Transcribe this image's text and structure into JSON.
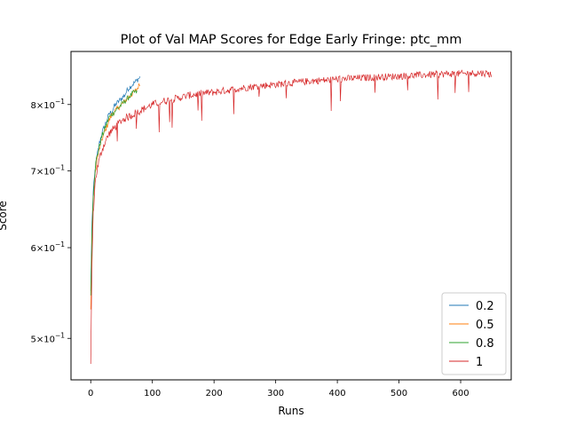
{
  "chart_data": {
    "type": "line",
    "title": "Plot of Val MAP Scores for Edge Early Fringe: ptc_mm",
    "xlabel": "Runs",
    "ylabel": "Score",
    "yscale": "log",
    "xlim": [
      -32,
      682
    ],
    "ylim": [
      0.46,
      0.89
    ],
    "x_ticks": [
      0,
      100,
      200,
      300,
      400,
      500,
      600
    ],
    "x_tick_labels": [
      "0",
      "100",
      "200",
      "300",
      "400",
      "500",
      "600"
    ],
    "y_ticks": [
      0.5,
      0.6,
      0.7,
      0.8
    ],
    "y_tick_labels": [
      {
        "base": "5",
        "times": "×",
        "exp_base": "10",
        "exp": "−1"
      },
      {
        "base": "6",
        "times": "×",
        "exp_base": "10",
        "exp": "−1"
      },
      {
        "base": "7",
        "times": "×",
        "exp_base": "10",
        "exp": "−1"
      },
      {
        "base": "8",
        "times": "×",
        "exp_base": "10",
        "exp": "−1"
      }
    ],
    "grid": false,
    "legend_position": "lower-right",
    "series": [
      {
        "name": "0.2",
        "color": "#1f77b4",
        "points": [
          [
            0,
            0.55
          ],
          [
            2,
            0.63
          ],
          [
            4,
            0.67
          ],
          [
            6,
            0.69
          ],
          [
            8,
            0.71
          ],
          [
            10,
            0.72
          ],
          [
            14,
            0.74
          ],
          [
            18,
            0.755
          ],
          [
            22,
            0.765
          ],
          [
            26,
            0.775
          ],
          [
            30,
            0.785
          ],
          [
            35,
            0.79
          ],
          [
            40,
            0.8
          ],
          [
            45,
            0.805
          ],
          [
            50,
            0.81
          ],
          [
            55,
            0.815
          ],
          [
            60,
            0.825
          ],
          [
            65,
            0.83
          ],
          [
            70,
            0.835
          ],
          [
            75,
            0.84
          ],
          [
            80,
            0.845
          ]
        ]
      },
      {
        "name": "0.5",
        "color": "#ff7f0e",
        "points": [
          [
            0,
            0.53
          ],
          [
            2,
            0.61
          ],
          [
            4,
            0.66
          ],
          [
            6,
            0.685
          ],
          [
            8,
            0.7
          ],
          [
            10,
            0.715
          ],
          [
            14,
            0.73
          ],
          [
            18,
            0.745
          ],
          [
            22,
            0.755
          ],
          [
            26,
            0.765
          ],
          [
            30,
            0.775
          ],
          [
            35,
            0.785
          ],
          [
            40,
            0.79
          ],
          [
            45,
            0.795
          ],
          [
            50,
            0.8
          ],
          [
            55,
            0.805
          ],
          [
            60,
            0.81
          ],
          [
            65,
            0.815
          ],
          [
            70,
            0.82
          ],
          [
            75,
            0.825
          ],
          [
            80,
            0.835
          ]
        ]
      },
      {
        "name": "0.8",
        "color": "#2ca02c",
        "points": [
          [
            0,
            0.545
          ],
          [
            2,
            0.62
          ],
          [
            4,
            0.665
          ],
          [
            6,
            0.69
          ],
          [
            8,
            0.71
          ],
          [
            10,
            0.72
          ],
          [
            14,
            0.735
          ],
          [
            18,
            0.75
          ],
          [
            22,
            0.76
          ],
          [
            26,
            0.77
          ],
          [
            30,
            0.78
          ],
          [
            35,
            0.785
          ],
          [
            40,
            0.79
          ],
          [
            45,
            0.795
          ],
          [
            50,
            0.8
          ],
          [
            55,
            0.805
          ],
          [
            60,
            0.81
          ],
          [
            65,
            0.815
          ],
          [
            70,
            0.82
          ],
          [
            75,
            0.82
          ]
        ]
      },
      {
        "name": "1",
        "color": "#d62728",
        "points": [
          [
            0,
            0.475
          ],
          [
            2,
            0.58
          ],
          [
            4,
            0.64
          ],
          [
            6,
            0.67
          ],
          [
            8,
            0.69
          ],
          [
            10,
            0.7
          ],
          [
            15,
            0.72
          ],
          [
            20,
            0.735
          ],
          [
            25,
            0.745
          ],
          [
            30,
            0.755
          ],
          [
            40,
            0.765
          ],
          [
            50,
            0.775
          ],
          [
            60,
            0.78
          ],
          [
            70,
            0.785
          ],
          [
            80,
            0.79
          ],
          [
            90,
            0.795
          ],
          [
            100,
            0.8
          ],
          [
            110,
            0.803
          ],
          [
            120,
            0.806
          ],
          [
            140,
            0.81
          ],
          [
            160,
            0.815
          ],
          [
            180,
            0.818
          ],
          [
            200,
            0.82
          ],
          [
            220,
            0.823
          ],
          [
            240,
            0.826
          ],
          [
            260,
            0.829
          ],
          [
            280,
            0.831
          ],
          [
            300,
            0.833
          ],
          [
            320,
            0.835
          ],
          [
            340,
            0.837
          ],
          [
            360,
            0.839
          ],
          [
            380,
            0.84
          ],
          [
            400,
            0.842
          ],
          [
            420,
            0.843
          ],
          [
            440,
            0.844
          ],
          [
            460,
            0.845
          ],
          [
            480,
            0.846
          ],
          [
            500,
            0.847
          ],
          [
            520,
            0.848
          ],
          [
            540,
            0.849
          ],
          [
            560,
            0.85
          ],
          [
            580,
            0.851
          ],
          [
            600,
            0.851
          ],
          [
            620,
            0.852
          ],
          [
            640,
            0.852
          ],
          [
            650,
            0.85
          ]
        ]
      }
    ]
  }
}
